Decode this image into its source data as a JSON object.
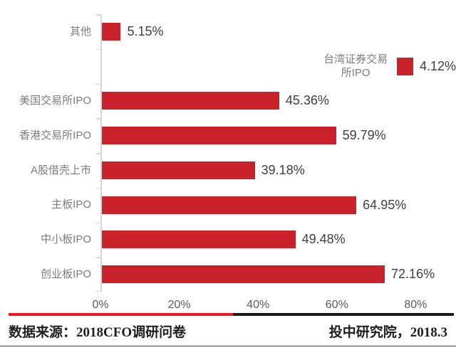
{
  "chart_data": {
    "type": "bar",
    "orientation": "horizontal",
    "title": "",
    "categories": [
      "其他",
      "台湾证券交易\n所IPO",
      "美国交易所IPO",
      "香港交易所IPO",
      "A股借壳上市",
      "主板IPO",
      "中小板IPO",
      "创业板IPO"
    ],
    "values": [
      5.15,
      4.12,
      45.36,
      59.79,
      39.18,
      64.95,
      49.48,
      72.16
    ],
    "value_labels": [
      "5.15%",
      "4.12%",
      "45.36%",
      "59.79%",
      "39.18%",
      "64.95%",
      "49.48%",
      "72.16%"
    ],
    "x_tick_values": [
      0,
      20,
      40,
      60,
      80
    ],
    "x_tick_labels": [
      "0%",
      "20%",
      "40%",
      "60%",
      "80%"
    ],
    "xlim": [
      0,
      80
    ],
    "grid": false,
    "legend": false
  },
  "footer": {
    "source": "数据来源：2018CFO调研问卷",
    "publisher": "投中研究院，2018.3"
  },
  "colors": {
    "bar": "#C9222B",
    "divider_red": "#ED1C24",
    "divider_black": "#1A1A1A",
    "category_label": "#7C7C7C",
    "value_label": "#3F3F3F",
    "axis_label": "#595959",
    "axis_line": "#D6D6D6"
  }
}
